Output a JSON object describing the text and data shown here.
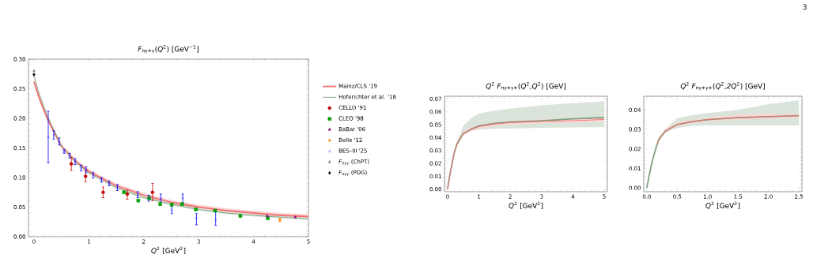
{
  "chart_data": [
    {
      "type": "scatter",
      "title": "*F*$_{πγ∗γ}$(*Q*$^{2}$) [GeV$^{−1}$]",
      "xlabel": "*Q*$^{2}$  [GeV$^{2}$]",
      "xlim": [
        -0.1,
        5
      ],
      "ylim": [
        0,
        0.3
      ],
      "xticks": [
        0,
        1,
        2,
        3,
        4,
        5
      ],
      "yticks": [
        {
          "value": 0,
          "label": "0.00"
        },
        {
          "value": 0.05,
          "label": "0.05"
        },
        {
          "value": 0.1,
          "label": "0.10"
        },
        {
          "value": 0.15,
          "label": "0.15"
        },
        {
          "value": 0.2,
          "label": "0.20"
        },
        {
          "value": 0.25,
          "label": "0.25"
        },
        {
          "value": 0.3,
          "label": "0.30"
        }
      ],
      "legend": "right",
      "series": [
        {
          "name": "Mainz/CLS '19",
          "type": "line",
          "color": "#f07070",
          "x": [
            0,
            0.1,
            0.25,
            0.5,
            0.75,
            1,
            1.5,
            2,
            2.5,
            3,
            3.5,
            4,
            4.5,
            5
          ],
          "values": [
            0.262,
            0.233,
            0.198,
            0.153,
            0.128,
            0.11,
            0.086,
            0.07,
            0.058,
            0.05,
            0.044,
            0.04,
            0.036,
            0.034
          ],
          "lower": [
            0.258,
            0.229,
            0.194,
            0.149,
            0.124,
            0.106,
            0.082,
            0.066,
            0.054,
            0.046,
            0.04,
            0.036,
            0.032,
            0.03
          ],
          "upper": [
            0.266,
            0.237,
            0.202,
            0.157,
            0.132,
            0.114,
            0.09,
            0.074,
            0.062,
            0.054,
            0.048,
            0.044,
            0.04,
            0.038
          ]
        },
        {
          "name": "Hoferichter et al. '18",
          "type": "line",
          "color": "#7f9f7f",
          "x": [
            0,
            0.1,
            0.25,
            0.5,
            0.75,
            1,
            1.5,
            2,
            2.5,
            3,
            3.5,
            4,
            4.5,
            5
          ],
          "values": [
            0.272,
            0.24,
            0.203,
            0.153,
            0.127,
            0.108,
            0.083,
            0.066,
            0.055,
            0.046,
            0.04,
            0.036,
            0.033,
            0.03
          ],
          "lower": [
            0.27,
            0.238,
            0.201,
            0.151,
            0.125,
            0.106,
            0.081,
            0.064,
            0.053,
            0.044,
            0.038,
            0.034,
            0.031,
            0.028
          ],
          "upper": [
            0.274,
            0.242,
            0.205,
            0.155,
            0.129,
            0.11,
            0.085,
            0.068,
            0.057,
            0.048,
            0.042,
            0.038,
            0.035,
            0.032
          ]
        },
        {
          "name": "CELLO '91",
          "color": "#c00000",
          "marker": "circle",
          "x": [
            0.68,
            0.94,
            1.26,
            1.7,
            2.16
          ],
          "values": [
            0.123,
            0.102,
            0.075,
            0.072,
            0.075
          ],
          "errors": [
            [
              0.112,
              0.134
            ],
            [
              0.093,
              0.111
            ],
            [
              0.066,
              0.084
            ],
            [
              0.063,
              0.079
            ],
            [
              0.061,
              0.09
            ]
          ]
        },
        {
          "name": "CLEO '98",
          "color": "#00a000",
          "marker": "square",
          "x": [
            1.64,
            1.9,
            2.1,
            2.3,
            2.51,
            2.7,
            2.95,
            3.3,
            3.76,
            4.26
          ],
          "values": [
            0.075,
            0.061,
            0.065,
            0.055,
            0.054,
            0.055,
            0.046,
            0.044,
            0.035,
            0.031
          ]
        },
        {
          "name": "BaBar '06",
          "color": "#800080",
          "marker": "triangle",
          "x": [
            4.25,
            4.76
          ],
          "values": [
            0.035,
            0.033
          ]
        },
        {
          "name": "Belle '12",
          "color": "#ff8000",
          "marker": "triangle-down",
          "x": [
            4.48
          ],
          "values": [
            0.028
          ],
          "errors": [
            0.003
          ]
        },
        {
          "name": "BES–III '25",
          "color": "#0000ff",
          "marker": "cross",
          "x": [
            0.26,
            0.36,
            0.46,
            0.55,
            0.65,
            0.75,
            0.86,
            0.95,
            1.08,
            1.23,
            1.37,
            1.52,
            1.89,
            2.09,
            2.31,
            2.51,
            2.71,
            2.96,
            3.31
          ],
          "values": [
            0.168,
            0.172,
            0.161,
            0.144,
            0.137,
            0.127,
            0.116,
            0.113,
            0.104,
            0.096,
            0.09,
            0.083,
            0.071,
            0.065,
            0.064,
            0.045,
            0.065,
            0.031,
            0.029
          ],
          "errors": [
            [
              0.125,
              0.212
            ],
            0.007,
            0.006,
            0.003,
            0.004,
            0.005,
            0.005,
            0.005,
            0.005,
            0.004,
            0.004,
            0.005,
            0.005,
            0.005,
            0.008,
            [
              0.039,
              0.052
            ],
            [
              0.057,
              0.072
            ],
            [
              0.02,
              0.039
            ],
            [
              0.019,
              0.042
            ]
          ]
        },
        {
          "name": "*F*$_{πγγ}$ (ChPT)",
          "color": "#888888",
          "marker": "diamond",
          "x": [
            0
          ],
          "values": [
            0.28
          ]
        },
        {
          "name": "*F*$_{πγγ}$ (PDG)",
          "color": "#000000",
          "marker": "diamond",
          "x": [
            0
          ],
          "values": [
            0.274
          ]
        }
      ]
    },
    {
      "type": "line",
      "title": "*Q*$^{2}$ *F*$_{πγ∗γ∗}$(*Q*$^{2}$,*Q*$^{2}$) [GeV]",
      "xlabel": "*Q*$^{2}$  [GeV$^{2}$]",
      "xlim": [
        -0.1,
        5.1
      ],
      "ylim": [
        -0.002,
        0.072
      ],
      "xticks": [
        0,
        1,
        2,
        3,
        4,
        5
      ],
      "yticks": [
        {
          "value": 0,
          "label": "0.00"
        },
        {
          "value": 0.01,
          "label": "0.01"
        },
        {
          "value": 0.02,
          "label": "0.02"
        },
        {
          "value": 0.03,
          "label": "0.03"
        },
        {
          "value": 0.04,
          "label": "0.04"
        },
        {
          "value": 0.05,
          "label": "0.05"
        },
        {
          "value": 0.06,
          "label": "0.06"
        },
        {
          "value": 0.07,
          "label": "0.07"
        }
      ],
      "series": [
        {
          "color": "#7f9f7f",
          "x": [
            0,
            0.05,
            0.1,
            0.2,
            0.3,
            0.5,
            0.75,
            1,
            1.5,
            2,
            3,
            4,
            5
          ],
          "values": [
            0,
            0.008,
            0.0145,
            0.027,
            0.035,
            0.043,
            0.0465,
            0.049,
            0.051,
            0.052,
            0.053,
            0.0545,
            0.0555
          ],
          "lower": [
            0,
            0.008,
            0.0145,
            0.027,
            0.034,
            0.042,
            0.045,
            0.046,
            0.047,
            0.047,
            0.0475,
            0.0478,
            0.048
          ],
          "upper": [
            0,
            0.008,
            0.0145,
            0.027,
            0.037,
            0.049,
            0.055,
            0.0585,
            0.061,
            0.0624,
            0.065,
            0.0667,
            0.068
          ]
        },
        {
          "color": "#f07070",
          "x": [
            0,
            0.05,
            0.1,
            0.2,
            0.3,
            0.5,
            0.75,
            1,
            1.5,
            2,
            3,
            4,
            5
          ],
          "values": [
            0,
            0.008,
            0.0145,
            0.027,
            0.035,
            0.043,
            0.0465,
            0.0485,
            0.0505,
            0.0515,
            0.0525,
            0.053,
            0.054
          ],
          "lower": [
            0,
            0.007,
            0.013,
            0.0255,
            0.0335,
            0.0415,
            0.045,
            0.047,
            0.049,
            0.05,
            0.051,
            0.0515,
            0.0525
          ],
          "upper": [
            0,
            0.009,
            0.016,
            0.0285,
            0.0365,
            0.0445,
            0.048,
            0.05,
            0.052,
            0.053,
            0.054,
            0.0545,
            0.0555
          ]
        }
      ]
    },
    {
      "type": "line",
      "title": "*Q*$^{2}$  *F*$_{πγ∗γ∗}$(*Q*$^{2}$,*2Q*$^{2}$) [GeV]",
      "xlabel": "*Q*$^{2}$  [GeV$^{2}$]",
      "xlim": [
        -0.05,
        2.55
      ],
      "ylim": [
        -0.002,
        0.047
      ],
      "xticks": [
        {
          "value": 0,
          "label": "0.0"
        },
        {
          "value": 0.5,
          "label": "0.5"
        },
        {
          "value": 1,
          "label": "1.0"
        },
        {
          "value": 1.5,
          "label": "1.5"
        },
        {
          "value": 2,
          "label": "2.0"
        },
        {
          "value": 2.5,
          "label": "2.5"
        }
      ],
      "yticks": [
        {
          "value": 0,
          "label": "0.00"
        },
        {
          "value": 0.01,
          "label": "0.01"
        },
        {
          "value": 0.02,
          "label": "0.02"
        },
        {
          "value": 0.03,
          "label": "0.03"
        },
        {
          "value": 0.04,
          "label": "0.04"
        }
      ],
      "annotations": [
        "3"
      ],
      "series": [
        {
          "color": "#7f9f7f",
          "x": [
            0,
            0.05,
            0.1,
            0.17,
            0.2,
            0.3,
            0.5,
            0.75,
            1,
            1.5,
            2,
            2.5
          ],
          "values": [
            0,
            0.008,
            0.015,
            0.0224,
            0.025,
            0.029,
            0.0325,
            0.034,
            0.035,
            0.036,
            0.0365,
            0.037
          ],
          "lower": [
            0,
            0.008,
            0.015,
            0.0224,
            0.025,
            0.029,
            0.0306,
            0.0318,
            0.032,
            0.032,
            0.032,
            0.032
          ],
          "upper": [
            0,
            0.008,
            0.015,
            0.0224,
            0.025,
            0.03,
            0.0358,
            0.0373,
            0.0384,
            0.04,
            0.043,
            0.045
          ]
        },
        {
          "color": "#f07070",
          "x": [
            0.17,
            0.2,
            0.3,
            0.5,
            0.75,
            1,
            1.5,
            2,
            2.5
          ],
          "values": [
            0.0224,
            0.025,
            0.029,
            0.0325,
            0.034,
            0.035,
            0.036,
            0.0365,
            0.037
          ],
          "lower": [
            0.0214,
            0.024,
            0.028,
            0.0315,
            0.033,
            0.034,
            0.035,
            0.0355,
            0.036
          ],
          "upper": [
            0.0234,
            0.026,
            0.03,
            0.0335,
            0.035,
            0.036,
            0.0375,
            0.038,
            0.038
          ]
        }
      ]
    }
  ]
}
